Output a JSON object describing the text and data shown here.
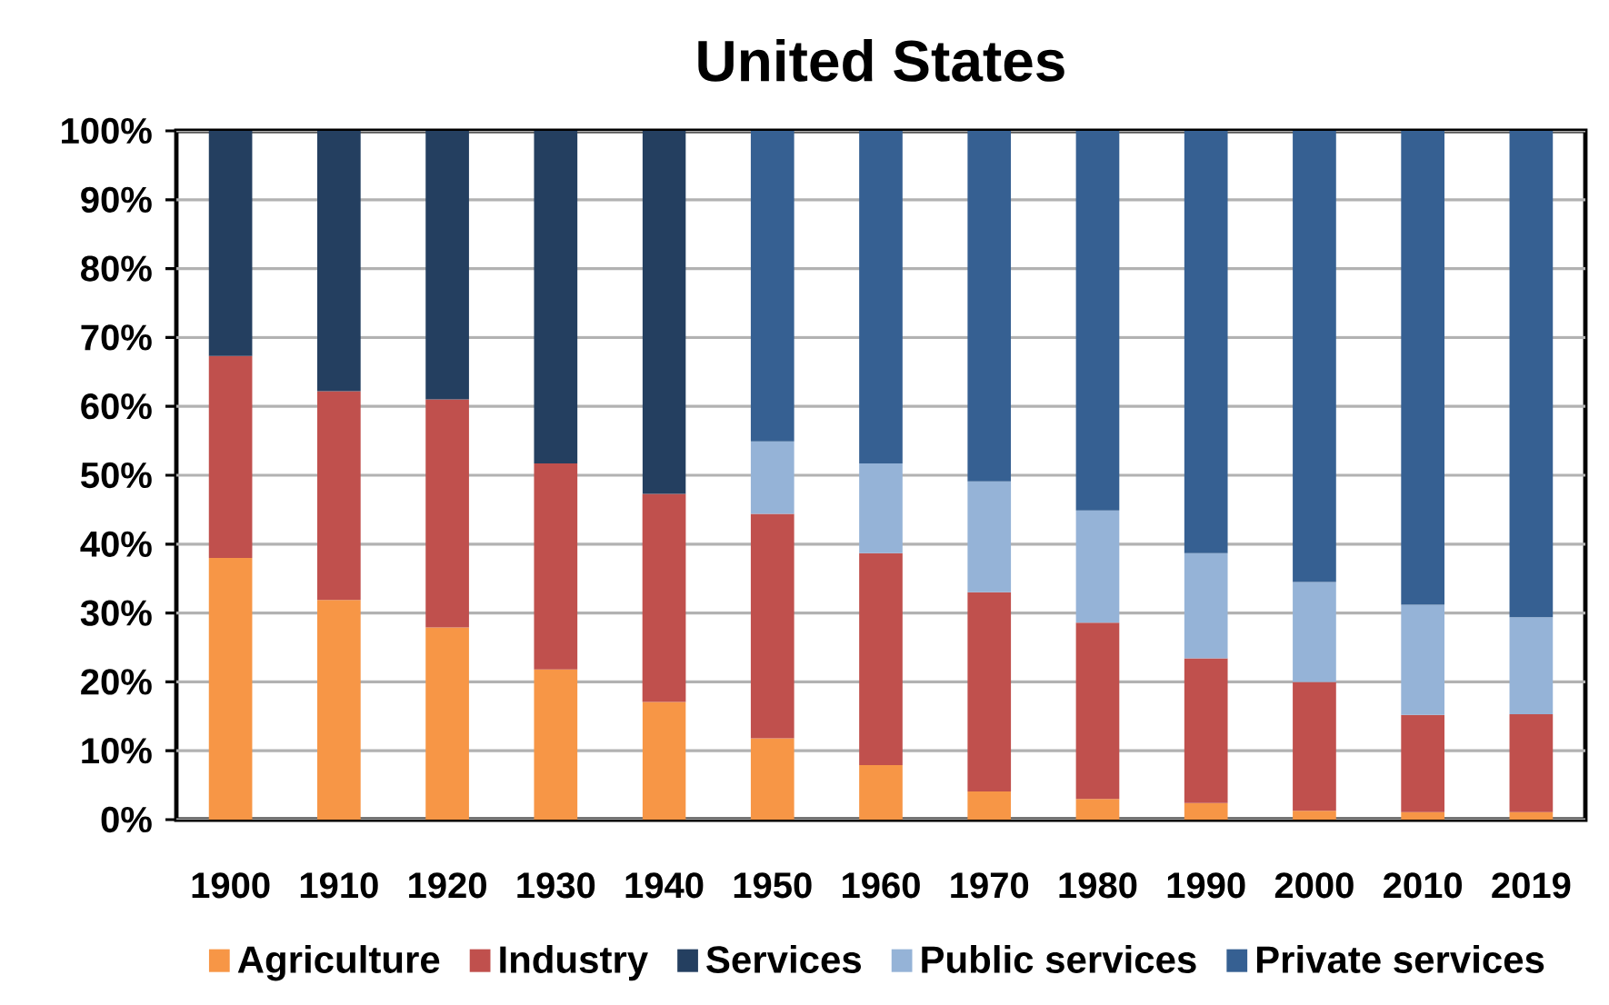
{
  "chart_data": {
    "type": "bar",
    "stacked": true,
    "title": "United States",
    "categories": [
      "1900",
      "1910",
      "1920",
      "1930",
      "1940",
      "1950",
      "1960",
      "1970",
      "1980",
      "1990",
      "2000",
      "2010",
      "2019"
    ],
    "series": [
      {
        "name": "Agriculture",
        "color": "#f79646",
        "values": [
          38.0,
          31.9,
          27.9,
          21.8,
          17.1,
          11.8,
          7.9,
          4.1,
          3.0,
          2.4,
          1.3,
          1.1,
          1.1
        ]
      },
      {
        "name": "Industry",
        "color": "#c0504d",
        "values": [
          29.3,
          30.3,
          33.1,
          29.9,
          30.2,
          32.6,
          30.8,
          28.9,
          25.6,
          21.0,
          18.7,
          14.1,
          14.2
        ]
      },
      {
        "name": "Services",
        "color": "#243f60",
        "values": [
          32.7,
          37.8,
          39.0,
          48.3,
          52.7,
          null,
          null,
          null,
          null,
          null,
          null,
          null,
          null
        ]
      },
      {
        "name": "Public services",
        "color": "#95b3d7",
        "values": [
          null,
          null,
          null,
          null,
          null,
          10.5,
          13.0,
          16.1,
          16.3,
          15.3,
          14.5,
          16.0,
          14.1
        ]
      },
      {
        "name": "Private services",
        "color": "#366092",
        "values": [
          null,
          null,
          null,
          null,
          null,
          45.1,
          48.3,
          50.9,
          55.1,
          61.3,
          65.5,
          68.8,
          70.6
        ]
      }
    ],
    "ylim": [
      0,
      100
    ],
    "yticks": [
      {
        "value": 0,
        "label": "0%"
      },
      {
        "value": 10,
        "label": "10%"
      },
      {
        "value": 20,
        "label": "20%"
      },
      {
        "value": 30,
        "label": "30%"
      },
      {
        "value": 40,
        "label": "40%"
      },
      {
        "value": 50,
        "label": "50%"
      },
      {
        "value": 60,
        "label": "60%"
      },
      {
        "value": 70,
        "label": "70%"
      },
      {
        "value": 80,
        "label": "80%"
      },
      {
        "value": 90,
        "label": "90%"
      },
      {
        "value": 100,
        "label": "100%"
      }
    ],
    "grid": "y",
    "legend": "bottom"
  }
}
